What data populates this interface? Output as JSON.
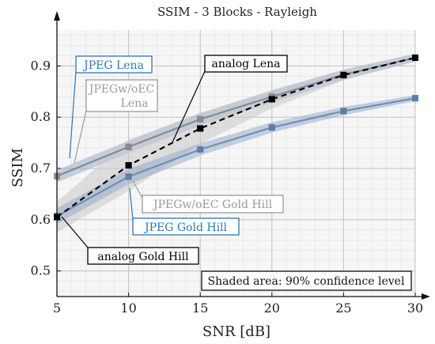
{
  "chart_data": {
    "type": "line",
    "title": "SSIM - 3 Blocks - Rayleigh",
    "xlabel": "SNR [dB]",
    "ylabel": "SSIM",
    "xlim": [
      5,
      30
    ],
    "ylim": [
      0.45,
      0.97
    ],
    "x_ticks": [
      5,
      10,
      15,
      20,
      25,
      30
    ],
    "y_ticks": [
      0.5,
      0.6,
      0.7,
      0.8,
      0.9
    ],
    "grid": true,
    "x": [
      5,
      10,
      15,
      20,
      25,
      30
    ],
    "series": [
      {
        "name": "JPEG Lena",
        "values": [
          0.685,
          0.742,
          0.796,
          0.84,
          0.883,
          0.916
        ],
        "band": [
          0.012,
          0.012,
          0.012,
          0.012,
          0.01,
          0.008
        ]
      },
      {
        "name": "JPEGw/oEC Lena",
        "values": [
          0.685,
          0.742,
          0.796,
          0.84,
          0.883,
          0.916
        ],
        "band": [
          0.012,
          0.012,
          0.012,
          0.012,
          0.01,
          0.008
        ]
      },
      {
        "name": "analog Lena",
        "values": [
          0.605,
          0.706,
          0.778,
          0.835,
          0.882,
          0.916
        ],
        "band": [
          0.03,
          0.05,
          0.03,
          0.018,
          0.01,
          0.006
        ]
      },
      {
        "name": "JPEGw/oEC Gold Hill",
        "values": [
          0.607,
          0.684,
          0.737,
          0.78,
          0.812,
          0.837
        ],
        "band": [
          0.015,
          0.015,
          0.012,
          0.01,
          0.008,
          0.006
        ]
      },
      {
        "name": "JPEG Gold Hill",
        "values": [
          0.607,
          0.684,
          0.737,
          0.78,
          0.812,
          0.837
        ],
        "band": [
          0.015,
          0.015,
          0.012,
          0.01,
          0.008,
          0.006
        ]
      },
      {
        "name": "analog Gold Hill",
        "values": [
          0.605,
          0.706,
          0.778,
          0.835,
          0.882,
          0.916
        ],
        "band": [
          0.03,
          0.05,
          0.03,
          0.018,
          0.01,
          0.006
        ]
      }
    ],
    "annotations": [
      {
        "text": "JPEG Lena",
        "color": "#2f78b5"
      },
      {
        "text": "JPEGw/oEC",
        "text2": "Lena",
        "color": "#9a9a9a"
      },
      {
        "text": "analog Lena",
        "color": "#000000"
      },
      {
        "text": "JPEGw/oEC Gold Hill",
        "color": "#9a9a9a"
      },
      {
        "text": "JPEG Gold Hill",
        "color": "#2f78b5"
      },
      {
        "text": "analog Gold Hill",
        "color": "#000000"
      }
    ],
    "note": "Shaded area: 90% confidence level",
    "colors": {
      "jpeg": "#6f8fb5",
      "jpeg_marker": "#5b7fa8",
      "wo_ec": "#8a8a8a",
      "analog": "#000000",
      "band_blue": "#8fa5c8",
      "band_gray": "#c8c8c8",
      "grid_major": "#c0c0c0",
      "grid_minor": "#e6e6e6",
      "blue_label": "#2f78b5"
    }
  }
}
